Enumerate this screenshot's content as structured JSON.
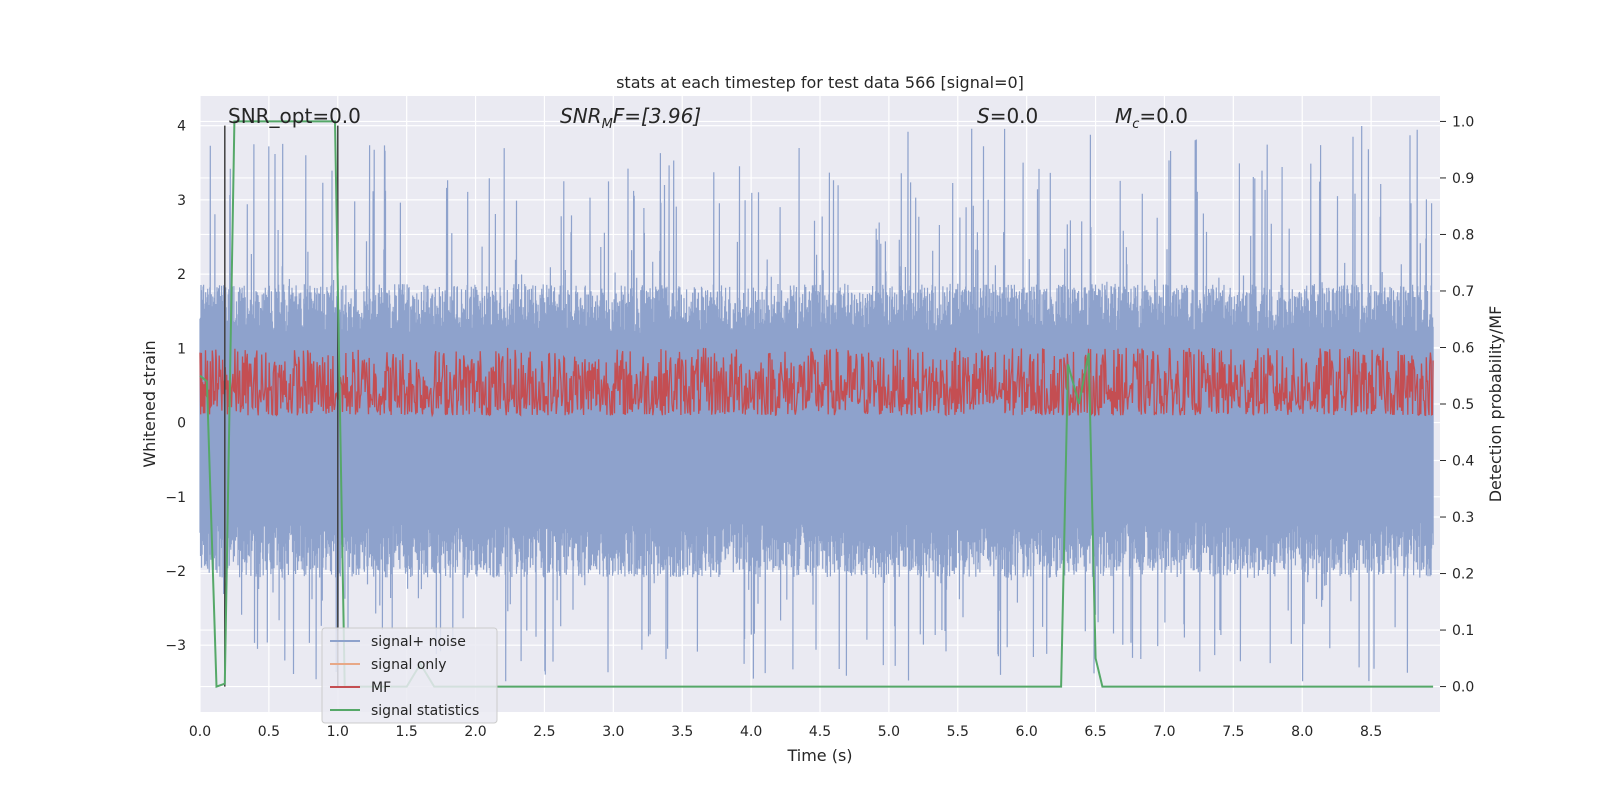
{
  "chart_data": {
    "type": "line",
    "title": "stats at each timestep for test data 566 [signal=0]",
    "xlabel": "Time (s)",
    "ylabel": "Whitened strain",
    "y2label": "Detection probability/MF",
    "xlim": [
      0.0,
      9.0
    ],
    "ylim": [
      -3.9,
      4.4
    ],
    "y2lim": [
      -0.045,
      1.045
    ],
    "grid": true,
    "legend_position": "lower-left",
    "x_ticks": [
      "0.0",
      "0.5",
      "1.0",
      "1.5",
      "2.0",
      "2.5",
      "3.0",
      "3.5",
      "4.0",
      "4.5",
      "5.0",
      "5.5",
      "6.0",
      "6.5",
      "7.0",
      "7.5",
      "8.0",
      "8.5"
    ],
    "y_ticks": [
      "4",
      "3",
      "2",
      "1",
      "0",
      "−1",
      "−2",
      "−3"
    ],
    "y2_ticks": [
      "1.0",
      "0.9",
      "0.8",
      "0.7",
      "0.6",
      "0.5",
      "0.4",
      "0.3",
      "0.2",
      "0.1",
      "0.0"
    ],
    "annotations": {
      "snr_opt": "SNR_opt=0.0",
      "snr_mf_base": "SNR",
      "snr_mf_sub": "M",
      "snr_mf_tail": "F=[3.96]",
      "s_var": "S",
      "s_val": "=0.0",
      "mc_var": "M",
      "mc_sub": "c",
      "mc_val": "=0.0"
    },
    "vertical_markers": [
      0.18,
      1.0
    ],
    "series": [
      {
        "name": "signal+ noise",
        "color": "#8ea2cc",
        "axis": "left",
        "description_envelope": {
          "upper_typical": 1.7,
          "upper_peak": 4.0,
          "lower_typical": -1.9,
          "lower_peak": -3.5
        }
      },
      {
        "name": "signal only",
        "color": "#e8a887",
        "axis": "left",
        "values": [
          0
        ]
      },
      {
        "name": "MF",
        "color": "#c44e52",
        "axis": "right",
        "range": [
          0.48,
          0.6
        ]
      },
      {
        "name": "signal statistics",
        "color": "#55a868",
        "axis": "right",
        "x": [
          0.0,
          0.05,
          0.12,
          0.18,
          0.25,
          0.98,
          1.05,
          1.1,
          1.5,
          1.6,
          1.7,
          6.25,
          6.3,
          6.38,
          6.45,
          6.5,
          6.55,
          8.95
        ],
        "y": [
          0.55,
          0.54,
          0.0,
          0.005,
          1.0,
          1.0,
          0.0,
          0.0,
          0.0,
          0.04,
          0.0,
          0.0,
          0.57,
          0.5,
          0.59,
          0.05,
          0.0,
          0.0
        ]
      }
    ]
  }
}
